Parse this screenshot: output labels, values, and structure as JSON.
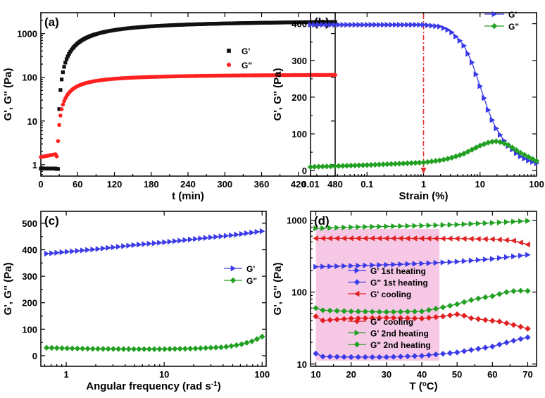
{
  "colors": {
    "black": "#111111",
    "red": "#ff2020",
    "blue": "#3a3ae8",
    "green": "#22a022",
    "crimson": "#e02020",
    "shade": "#f7c8e6",
    "marker_line": "#e03030"
  },
  "chart_data": [
    {
      "id": "a",
      "type": "scatter",
      "panel_label": "(a)",
      "xlabel": "t (min)",
      "ylabel": "G', G'' (Pa)",
      "xscale": "linear",
      "yscale": "log",
      "xlim": [
        0,
        480
      ],
      "ylim": [
        0.55,
        3000
      ],
      "xticks": [
        0,
        60,
        120,
        180,
        240,
        300,
        360,
        420,
        480
      ],
      "xtick_labels": [
        "0",
        "60",
        "120",
        "180",
        "240",
        "300",
        "360",
        "420",
        "480"
      ],
      "yticks": [
        1,
        10,
        100,
        1000
      ],
      "ytick_labels": [
        "1",
        "10",
        "100",
        "1000"
      ],
      "legend_position": "top-right",
      "series": [
        {
          "name": "G'",
          "color": "black",
          "marker": "square",
          "dense": true,
          "curve": "gel_gp",
          "x": [
            0,
            10,
            20,
            25,
            30,
            35,
            40,
            45,
            50,
            55,
            60,
            70,
            80,
            90,
            100,
            120,
            140,
            160,
            180,
            200,
            240,
            280,
            300,
            340,
            360,
            400,
            420,
            460,
            480
          ],
          "y": [
            0.85,
            0.82,
            0.8,
            0.9,
            1.5,
            4,
            12,
            30,
            60,
            100,
            150,
            260,
            380,
            480,
            580,
            760,
            900,
            1010,
            1100,
            1180,
            1320,
            1450,
            1510,
            1620,
            1680,
            1780,
            1830,
            1920,
            1970
          ]
        },
        {
          "name": "G\"",
          "color": "red",
          "marker": "circle",
          "dense": true,
          "curve": "gel_gpp",
          "x": [
            0,
            10,
            20,
            25,
            30,
            35,
            40,
            45,
            50,
            55,
            60,
            70,
            80,
            90,
            100,
            110,
            120,
            140,
            160,
            180,
            200,
            240,
            280,
            300,
            340,
            360,
            400,
            420,
            460,
            480
          ],
          "y": [
            1.5,
            1.5,
            1.55,
            1.7,
            2.2,
            4,
            8,
            14,
            22,
            32,
            45,
            65,
            82,
            95,
            103,
            108,
            112,
            116,
            118,
            119,
            120,
            121,
            121,
            121,
            121,
            120,
            120,
            120,
            119,
            118
          ]
        }
      ]
    },
    {
      "id": "b",
      "type": "line",
      "panel_label": "(b)",
      "xlabel": "Strain (%)",
      "ylabel": "G', G'' (Pa)",
      "xscale": "log",
      "yscale": "linear",
      "xlim": [
        0.01,
        100
      ],
      "ylim": [
        -15,
        430
      ],
      "xticks": [
        0.01,
        0.1,
        1,
        10,
        100
      ],
      "xtick_labels": [
        "0.01",
        "0.1",
        "1",
        "10",
        "100"
      ],
      "yticks": [
        0,
        100,
        200,
        300,
        400
      ],
      "ytick_labels": [
        "0",
        "100",
        "200",
        "300",
        "400"
      ],
      "vline": 1,
      "legend_position": "top-right",
      "series": [
        {
          "name": "G'",
          "color": "blue",
          "marker": "tri-right",
          "curve": "strain_gp",
          "x": [
            0.01,
            0.1,
            1,
            2,
            3,
            5,
            7,
            10,
            15,
            20,
            30,
            50,
            70,
            100
          ],
          "y": [
            397,
            397,
            397,
            392,
            380,
            345,
            300,
            230,
            150,
            110,
            70,
            40,
            28,
            20
          ]
        },
        {
          "name": "G\"",
          "color": "green",
          "marker": "diamond",
          "curve": "strain_gpp",
          "x": [
            0.01,
            0.1,
            1,
            2,
            3,
            5,
            7,
            10,
            15,
            20,
            30,
            50,
            70,
            100
          ],
          "y": [
            10,
            15,
            22,
            28,
            34,
            45,
            56,
            68,
            78,
            80,
            72,
            50,
            38,
            26
          ]
        }
      ]
    },
    {
      "id": "c",
      "type": "line",
      "panel_label": "(c)",
      "xlabel": "Angular frequency (rad s",
      "xlabel_sup": "-1",
      "xlabel_tail": ")",
      "ylabel": "G', G'' (Pa)",
      "xscale": "log",
      "yscale": "linear",
      "xlim": [
        0.55,
        110
      ],
      "ylim": [
        -40,
        545
      ],
      "xticks": [
        1,
        10,
        100
      ],
      "xtick_labels": [
        "1",
        "10",
        "100"
      ],
      "yticks": [
        0,
        100,
        200,
        300,
        400,
        500
      ],
      "ytick_labels": [
        "0",
        "100",
        "200",
        "300",
        "400",
        "500"
      ],
      "legend_position": "middle-right",
      "series": [
        {
          "name": "G'",
          "color": "blue",
          "marker": "tri-right",
          "curve": "freq_gp",
          "x": [
            0.63,
            1,
            2,
            5,
            10,
            20,
            50,
            100
          ],
          "y": [
            385,
            392,
            402,
            418,
            428,
            440,
            455,
            470
          ]
        },
        {
          "name": "G\"",
          "color": "green",
          "marker": "diamond",
          "curve": "freq_gpp",
          "x": [
            0.63,
            1,
            2,
            5,
            10,
            20,
            40,
            60,
            80,
            100
          ],
          "y": [
            30,
            28,
            26,
            25,
            25,
            27,
            32,
            42,
            55,
            72
          ]
        }
      ]
    },
    {
      "id": "d",
      "type": "line",
      "panel_label": "(d)",
      "xlabel": "T (",
      "xlabel_sup": "o",
      "xlabel_tail": "C)",
      "ylabel": "G', G'' (Pa)",
      "xscale": "linear",
      "yscale": "log",
      "xlim": [
        8.5,
        72.5
      ],
      "ylim": [
        9.3,
        1330
      ],
      "xticks": [
        10,
        20,
        30,
        40,
        50,
        60,
        70
      ],
      "xtick_labels": [
        "10",
        "20",
        "30",
        "40",
        "50",
        "60",
        "70"
      ],
      "yticks": [
        10,
        100,
        1000
      ],
      "ytick_labels": [
        "10",
        "100",
        "1000"
      ],
      "shaded_x": [
        10,
        45
      ],
      "legend_position": "left",
      "series": [
        {
          "name": "G' 1st heating",
          "color": "blue",
          "marker": "tri-right",
          "curve": "t_gp1",
          "x": [
            10,
            20,
            30,
            40,
            50,
            60,
            70
          ],
          "y": [
            225,
            232,
            240,
            250,
            265,
            290,
            330
          ]
        },
        {
          "name": "G\" 1st heating",
          "color": "blue",
          "marker": "diamond",
          "curve": "t_gpp1",
          "x": [
            10,
            12,
            20,
            30,
            40,
            50,
            60,
            70
          ],
          "y": [
            14,
            12.7,
            12.5,
            12.5,
            13,
            14.5,
            17.5,
            23.5
          ]
        },
        {
          "name": "G' cooling",
          "color": "crimson",
          "marker": "tri-left",
          "curve": "t_gpc",
          "x": [
            10,
            20,
            30,
            40,
            50,
            60,
            66,
            70
          ],
          "y": [
            560,
            560,
            560,
            558,
            555,
            545,
            520,
            460
          ]
        },
        {
          "name": "G\" cooling",
          "color": "crimson",
          "marker": "diamond",
          "curve": "t_gppc",
          "x": [
            10,
            11,
            14,
            20,
            30,
            40,
            46,
            51,
            53,
            58,
            62,
            66,
            70
          ],
          "y": [
            46,
            40,
            41,
            43,
            44,
            43,
            46,
            50,
            44,
            41,
            39,
            35,
            31
          ]
        },
        {
          "name": "G' 2nd heating",
          "color": "green",
          "marker": "tri-right",
          "curve": "t_gp2",
          "x": [
            10,
            20,
            30,
            40,
            50,
            60,
            70
          ],
          "y": [
            770,
            800,
            820,
            840,
            870,
            920,
            980
          ]
        },
        {
          "name": "G\" 2nd heating",
          "color": "green",
          "marker": "diamond",
          "curve": "t_gpp2",
          "x": [
            10,
            12,
            20,
            30,
            40,
            45,
            50,
            55,
            60,
            64,
            67,
            70
          ],
          "y": [
            60,
            56,
            54,
            53,
            54,
            60,
            68,
            80,
            88,
            100,
            105,
            104
          ]
        }
      ]
    }
  ]
}
